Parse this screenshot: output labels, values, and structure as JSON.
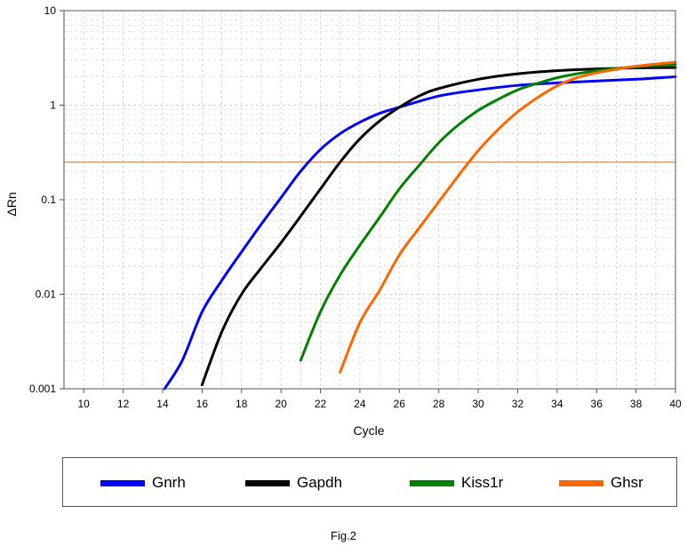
{
  "chart_data": {
    "type": "line",
    "title": "",
    "xlabel": "Cycle",
    "ylabel": "ΔRn",
    "xlim": [
      9,
      40
    ],
    "ylim": [
      0.001,
      10
    ],
    "y_scale": "log",
    "grid": true,
    "x_ticks": [
      "10",
      "12",
      "14",
      "16",
      "18",
      "20",
      "22",
      "24",
      "26",
      "28",
      "30",
      "32",
      "34",
      "36",
      "38",
      "40"
    ],
    "y_ticks": [
      "0.001",
      "0.01",
      "0.1",
      "1",
      "10"
    ],
    "threshold": 0.25,
    "threshold_color": "#c8926a",
    "legend_position": "bottom",
    "series": [
      {
        "name": "Gnrh",
        "color": "#0000ff",
        "x": [
          14.1,
          15,
          16,
          17,
          18,
          19,
          20,
          21,
          22,
          23,
          24,
          25,
          26,
          28,
          30,
          32,
          34,
          36,
          38,
          40
        ],
        "y": [
          0.001,
          0.002,
          0.0065,
          0.014,
          0.028,
          0.055,
          0.105,
          0.2,
          0.34,
          0.5,
          0.66,
          0.82,
          0.95,
          1.25,
          1.45,
          1.62,
          1.72,
          1.8,
          1.88,
          2.0
        ]
      },
      {
        "name": "Gapdh",
        "color": "#000000",
        "x": [
          16,
          17,
          18,
          19,
          20,
          21,
          22,
          23,
          24,
          25,
          26,
          27,
          28,
          30,
          32,
          34,
          36,
          38,
          40
        ],
        "y": [
          0.0011,
          0.004,
          0.01,
          0.019,
          0.035,
          0.067,
          0.13,
          0.25,
          0.44,
          0.68,
          0.95,
          1.25,
          1.5,
          1.88,
          2.15,
          2.32,
          2.42,
          2.48,
          2.5
        ]
      },
      {
        "name": "Kiss1r",
        "color": "#008000",
        "x": [
          21,
          22,
          23,
          24,
          25,
          26,
          27,
          28,
          29,
          30,
          31,
          32,
          33,
          34,
          35,
          36,
          37,
          38,
          39,
          40
        ],
        "y": [
          0.002,
          0.0065,
          0.016,
          0.033,
          0.065,
          0.13,
          0.23,
          0.4,
          0.62,
          0.88,
          1.15,
          1.45,
          1.7,
          1.95,
          2.15,
          2.32,
          2.45,
          2.55,
          2.62,
          2.68
        ]
      },
      {
        "name": "Ghsr",
        "color": "#ff6600",
        "x": [
          23,
          24,
          25,
          26,
          27,
          28,
          29,
          30,
          31,
          32,
          33,
          34,
          35,
          36,
          37,
          38,
          39,
          40
        ],
        "y": [
          0.0015,
          0.005,
          0.011,
          0.026,
          0.05,
          0.095,
          0.18,
          0.33,
          0.55,
          0.85,
          1.2,
          1.6,
          1.95,
          2.2,
          2.4,
          2.58,
          2.72,
          2.85
        ]
      }
    ]
  },
  "legend": {
    "items": [
      {
        "label": "Gnrh",
        "color": "#0000ff"
      },
      {
        "label": "Gapdh",
        "color": "#000000"
      },
      {
        "label": "Kiss1r",
        "color": "#008000"
      },
      {
        "label": "Ghsr",
        "color": "#ff6600"
      }
    ]
  },
  "figure_label": "Fig.2"
}
